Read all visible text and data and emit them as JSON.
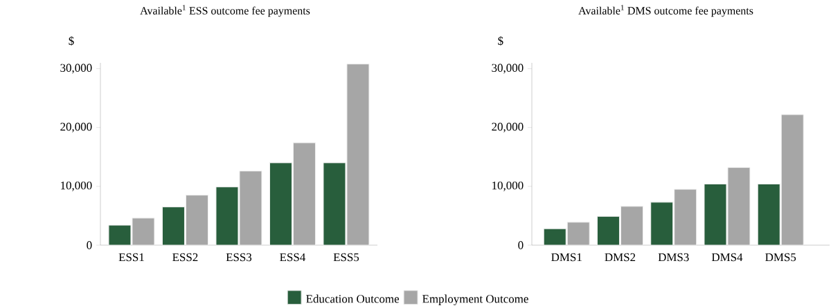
{
  "chart_data": [
    {
      "type": "bar",
      "title": "Available$^{1}$ ESS outcome fee payments",
      "ylabel": "$",
      "categories": [
        "ESS1",
        "ESS2",
        "ESS3",
        "ESS4",
        "ESS5"
      ],
      "series": [
        {
          "name": "Education Outcome",
          "color": "#285e3c",
          "values": [
            3400,
            6500,
            9900,
            14000,
            14000
          ]
        },
        {
          "name": "Employment Outcome",
          "color": "#a6a6a6",
          "values": [
            4600,
            8500,
            12600,
            17400,
            30800
          ]
        }
      ],
      "ylim": [
        0,
        31000
      ],
      "yticks": [
        0,
        {
          "value": 10000,
          "label": "10,000"
        },
        {
          "value": 20000,
          "label": "20,000"
        },
        {
          "value": 30000,
          "label": "30,000"
        }
      ],
      "legend": "bottom"
    },
    {
      "type": "bar",
      "title": "Available$^{1}$ DMS outcome fee payments",
      "ylabel": "$",
      "categories": [
        "DMS1",
        "DMS2",
        "DMS3",
        "DMS4",
        "DMS5"
      ],
      "series": [
        {
          "color": "#285e3c",
          "values": [
            2800,
            4900,
            7300,
            10400,
            10400
          ]
        },
        {
          "color": "#a6a6a6",
          "values": [
            3900,
            6600,
            9500,
            13200,
            22200
          ]
        }
      ],
      "ylim": [
        0,
        31000
      ],
      "yticks": [
        0,
        {
          "value": 10000,
          "label": "10,000"
        },
        {
          "value": 20000,
          "label": "20,000"
        },
        {
          "value": 30000,
          "label": "30,000"
        }
      ]
    }
  ]
}
